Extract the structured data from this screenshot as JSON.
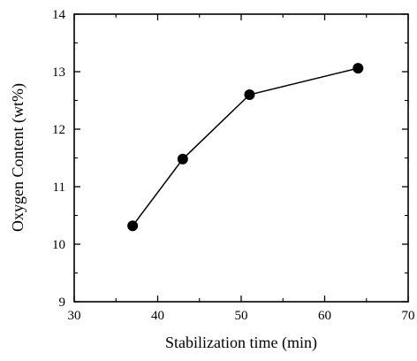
{
  "chart_data": {
    "type": "line",
    "title": "",
    "xlabel": "Stabilization time (min)",
    "ylabel": "Oxygen Content (wt%)",
    "xlim": [
      30,
      70
    ],
    "ylim": [
      9,
      14
    ],
    "x_ticks": [
      30,
      40,
      50,
      60,
      70
    ],
    "y_ticks": [
      9,
      10,
      11,
      12,
      13,
      14
    ],
    "x_tick_labels": [
      "30",
      "40",
      "50",
      "60",
      "70"
    ],
    "y_tick_labels": [
      "9",
      "10",
      "11",
      "12",
      "13",
      "14"
    ],
    "grid": false,
    "series": [
      {
        "x": [
          37,
          43,
          51,
          64
        ],
        "y": [
          10.32,
          11.48,
          12.6,
          13.06
        ],
        "marker": "filled-circle",
        "color": "#000000"
      }
    ]
  }
}
